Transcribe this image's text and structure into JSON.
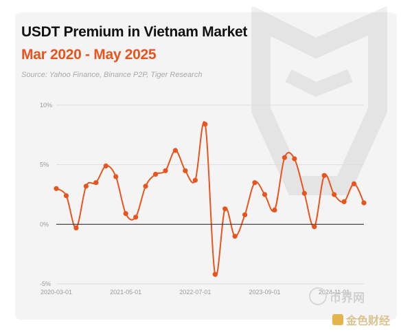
{
  "header": {
    "title": "USDT Premium in Vietnam Market",
    "subtitle": "Mar 2020 - May 2025",
    "source": "Source: Yahoo Finance, Binance P2P, Tiger Research"
  },
  "watermark": {
    "text_1": "币界网",
    "text_2": "金色财经"
  },
  "colors": {
    "accent": "#e8541d",
    "line": "#e8541d",
    "zero_line": "#333333",
    "grid": "#dddddd"
  },
  "chart_data": {
    "type": "line",
    "title": "USDT Premium in Vietnam Market",
    "subtitle": "Mar 2020 - May 2025",
    "xlabel": "",
    "ylabel": "",
    "ylim": [
      -5,
      10
    ],
    "yticks": [
      "10%",
      "5%",
      "0%",
      "-5%"
    ],
    "ytick_values": [
      10,
      5,
      0,
      -5
    ],
    "xticks": [
      "2020-03-01",
      "2021-05-01",
      "2022-07-01",
      "2023-09-01",
      "2024-11-01"
    ],
    "grid": "horizontal",
    "legend": "none",
    "x": [
      "2020-03",
      "2020-05",
      "2020-07",
      "2020-09",
      "2020-11",
      "2021-01",
      "2021-03",
      "2021-05",
      "2021-07",
      "2021-09",
      "2021-11",
      "2022-01",
      "2022-03",
      "2022-05",
      "2022-07",
      "2022-09",
      "2022-11",
      "2023-01",
      "2023-03",
      "2023-05",
      "2023-07",
      "2023-09",
      "2023-11",
      "2024-01",
      "2024-03",
      "2024-05",
      "2024-07",
      "2024-09",
      "2024-11",
      "2025-01",
      "2025-03",
      "2025-05"
    ],
    "series": [
      {
        "values": [
          3.0,
          2.4,
          -0.3,
          3.2,
          3.5,
          4.9,
          4.0,
          0.9,
          0.6,
          3.2,
          4.2,
          4.5,
          6.2,
          4.5,
          3.7,
          8.4,
          -4.2,
          1.3,
          -1.0,
          0.8,
          3.5,
          2.5,
          1.2,
          5.6,
          5.5,
          2.6,
          -0.2,
          4.1,
          2.5,
          1.9,
          3.4,
          1.8
        ]
      }
    ]
  }
}
